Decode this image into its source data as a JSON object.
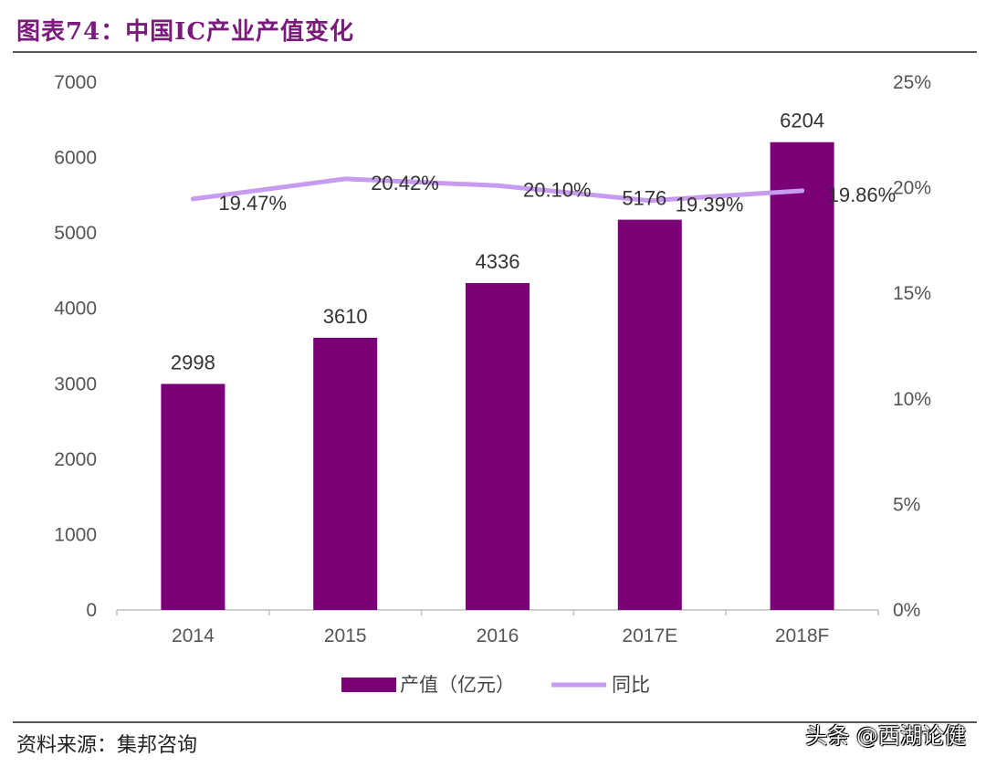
{
  "header": {
    "title": "图表74：中国IC产业产值变化"
  },
  "footer": {
    "source": "资料来源：集邦咨询",
    "watermark": "头条 @西湖论健"
  },
  "colors": {
    "bar": "#7a0078",
    "line": "#c79bf0",
    "rule": "#555555",
    "title": "#7a1a7a"
  },
  "chart_data": {
    "type": "bar",
    "categories": [
      "2014",
      "2015",
      "2016",
      "2017E",
      "2018F"
    ],
    "series": [
      {
        "name": "产值（亿元）",
        "type": "bar",
        "axis": "left",
        "values": [
          2998,
          3610,
          4336,
          5176,
          6204
        ],
        "labels": [
          "2998",
          "3610",
          "4336",
          "5176",
          "6204"
        ]
      },
      {
        "name": "同比",
        "type": "line",
        "axis": "right",
        "values": [
          19.47,
          20.42,
          20.1,
          19.39,
          19.86
        ],
        "labels": [
          "19.47%",
          "20.42%",
          "20.10%",
          "19.39%",
          "19.86%"
        ]
      }
    ],
    "y_left": {
      "min": 0,
      "max": 7000,
      "ticks": [
        "0",
        "1000",
        "2000",
        "3000",
        "4000",
        "5000",
        "6000",
        "7000"
      ]
    },
    "y_right": {
      "min": 0,
      "max": 25,
      "ticks": [
        "0%",
        "5%",
        "10%",
        "15%",
        "20%",
        "25%"
      ]
    },
    "legend": {
      "position": "bottom"
    },
    "grid": false
  }
}
